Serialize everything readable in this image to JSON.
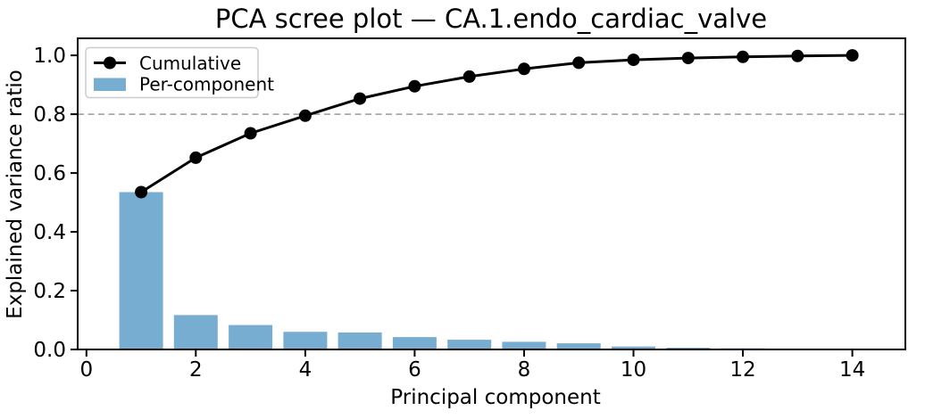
{
  "chart_data": {
    "type": "combo-bar-line",
    "title": "PCA scree plot — CA.1.endo_cardiac_valve",
    "xlabel": "Principal component",
    "ylabel": "Explained variance ratio",
    "x": [
      1,
      2,
      3,
      4,
      5,
      6,
      7,
      8,
      9,
      10,
      11,
      12,
      13,
      14
    ],
    "series": [
      {
        "name": "Cumulative",
        "type": "line",
        "marker": "circle",
        "color": "#000000",
        "values": [
          0.535,
          0.652,
          0.735,
          0.795,
          0.853,
          0.895,
          0.928,
          0.954,
          0.975,
          0.985,
          0.991,
          0.995,
          0.998,
          1.0
        ]
      },
      {
        "name": "Per-component",
        "type": "bar",
        "color": "#78add2",
        "values": [
          0.535,
          0.117,
          0.083,
          0.06,
          0.058,
          0.042,
          0.033,
          0.026,
          0.021,
          0.01,
          0.006,
          0.004,
          0.003,
          0.002
        ]
      }
    ],
    "threshold_line": {
      "y": 0.8,
      "style": "dashed",
      "color": "#9a9a9a"
    },
    "xticks": [
      0,
      2,
      4,
      6,
      8,
      10,
      12,
      14
    ],
    "yticks": [
      0.0,
      0.2,
      0.4,
      0.6,
      0.8,
      1.0
    ],
    "xlim": [
      -0.16,
      14.97
    ],
    "ylim": [
      0,
      1.058
    ],
    "bar_width": 0.8,
    "grid": false,
    "legend": {
      "position": "upper-left",
      "entries": [
        "Cumulative",
        "Per-component"
      ]
    }
  },
  "colors": {
    "background": "#ffffff",
    "axis": "#000000",
    "legend_border": "#cccccc"
  }
}
